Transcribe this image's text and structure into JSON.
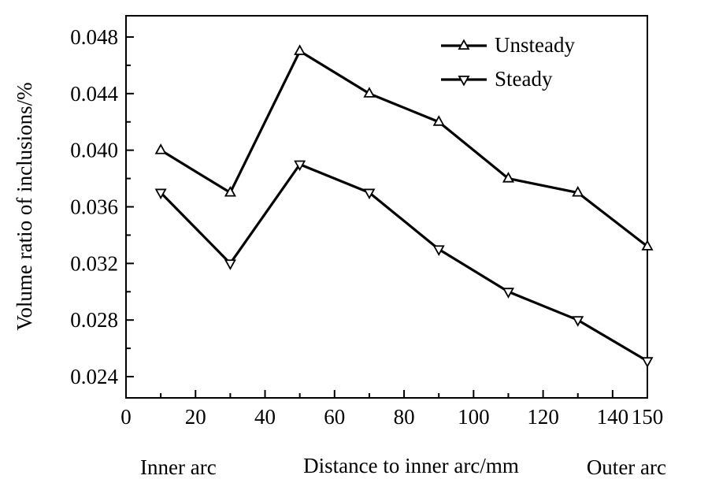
{
  "chart_data": {
    "type": "line",
    "xlabel": "Distance to inner arc/mm",
    "ylabel": "Volume ratio of inclusions/%",
    "x_annotations": {
      "left": "Inner arc",
      "right": "Outer arc"
    },
    "xlim": [
      0,
      150
    ],
    "ylim": [
      0.0225,
      0.0495
    ],
    "x_ticks": [
      0,
      20,
      40,
      60,
      80,
      100,
      120,
      140,
      150
    ],
    "x_tick_labels": [
      "0",
      "20",
      "40",
      "60",
      "80",
      "100",
      "120",
      "140",
      "150"
    ],
    "y_ticks": [
      0.024,
      0.028,
      0.032,
      0.036,
      0.04,
      0.044,
      0.048
    ],
    "y_tick_labels": [
      "0.024",
      "0.028",
      "0.032",
      "0.036",
      "0.040",
      "0.044",
      "0.048"
    ],
    "grid": false,
    "legend_position": "top-right",
    "x": [
      10,
      30,
      50,
      70,
      90,
      110,
      130,
      150
    ],
    "series": [
      {
        "name": "Unsteady",
        "marker": "triangle-up",
        "values": [
          0.04,
          0.037,
          0.047,
          0.044,
          0.042,
          0.038,
          0.037,
          0.0332
        ]
      },
      {
        "name": "Steady",
        "marker": "triangle-down",
        "values": [
          0.037,
          0.032,
          0.039,
          0.037,
          0.033,
          0.03,
          0.028,
          0.0251
        ]
      }
    ],
    "color": "#000000"
  }
}
